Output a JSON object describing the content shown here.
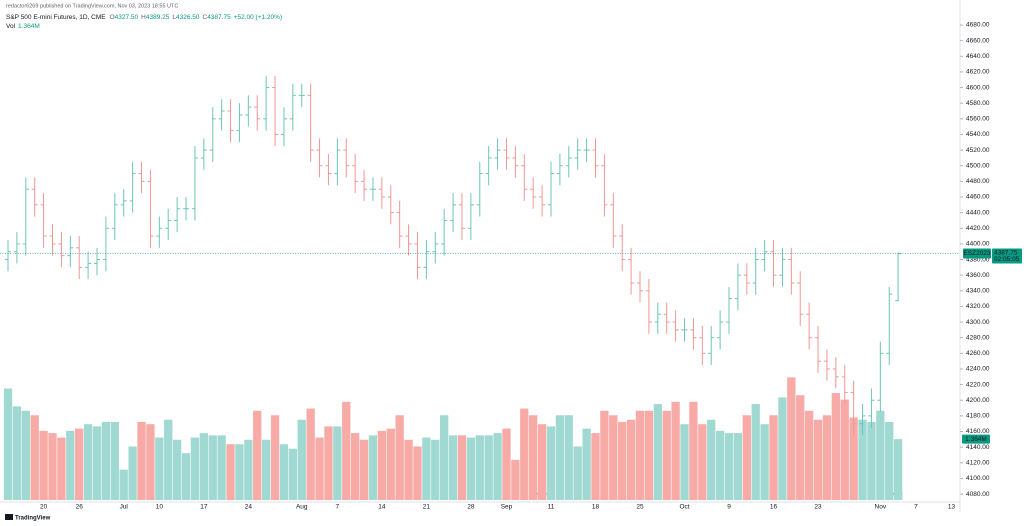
{
  "header": {
    "byline": "redactor6269 published on TradingView.com, Nov 03, 2023 18:55 UTC",
    "symbol": "S&P 500 E-mini Futures, 1D, CME",
    "fields": [
      {
        "label": "O",
        "value": "4327.50"
      },
      {
        "label": "H",
        "value": "4389.25"
      },
      {
        "label": "L",
        "value": "4326.50"
      },
      {
        "label": "C",
        "value": "4387.75"
      }
    ],
    "change": "+52.00 (+1.20%)",
    "vol_label": "Vol",
    "vol_value": "1.364M"
  },
  "chart_data": {
    "type": "ohlc",
    "categories": [
      null,
      null,
      null,
      null,
      "20",
      null,
      null,
      null,
      "26",
      null,
      null,
      null,
      null,
      "Jul",
      null,
      null,
      null,
      "10",
      null,
      null,
      null,
      null,
      "17",
      null,
      null,
      null,
      null,
      "24",
      null,
      null,
      null,
      null,
      null,
      "Aug",
      null,
      null,
      null,
      "7",
      null,
      null,
      null,
      null,
      "14",
      null,
      null,
      null,
      null,
      "21",
      null,
      null,
      null,
      null,
      "28",
      null,
      null,
      null,
      "Sep",
      null,
      null,
      null,
      null,
      "11",
      null,
      null,
      null,
      null,
      "18",
      null,
      null,
      null,
      null,
      "25",
      null,
      null,
      null,
      null,
      "Oct",
      null,
      null,
      null,
      null,
      "9",
      null,
      null,
      null,
      null,
      "16",
      null,
      null,
      null,
      null,
      "23",
      null,
      null,
      null,
      null,
      null,
      null,
      "Nov",
      null,
      null,
      null,
      "7",
      null,
      null,
      null,
      "13"
    ],
    "open": [
      4380,
      4390,
      4400,
      4470,
      4450,
      4410,
      4400,
      4385,
      4395,
      4370,
      4375,
      4380,
      4420,
      4450,
      4455,
      4490,
      4480,
      4410,
      4420,
      4430,
      4445,
      4445,
      4510,
      4520,
      4560,
      4570,
      4545,
      4565,
      4575,
      4560,
      4600,
      4540,
      4560,
      4590,
      4590,
      4520,
      4500,
      4490,
      4520,
      4500,
      4480,
      4470,
      4470,
      4460,
      4440,
      4410,
      4400,
      4370,
      4390,
      4400,
      4430,
      4450,
      4420,
      4450,
      4490,
      4510,
      4520,
      4510,
      4500,
      4470,
      4460,
      4450,
      4490,
      4500,
      4510,
      4520,
      4520,
      4500,
      4450,
      4410,
      4380,
      4350,
      4340,
      4300,
      4310,
      4300,
      4290,
      4290,
      4280,
      4260,
      4280,
      4300,
      4330,
      4360,
      4350,
      4380,
      4390,
      4360,
      4380,
      4350,
      4310,
      4280,
      4250,
      4240,
      4230,
      4210,
      4170,
      4180,
      4200,
      4260,
      4327.5,
      null,
      null,
      null,
      null,
      null,
      null
    ],
    "high": [
      4405,
      4415,
      4485,
      4485,
      4465,
      4425,
      4415,
      4410,
      4410,
      4390,
      4395,
      4435,
      4465,
      4470,
      4505,
      4505,
      4495,
      4435,
      4445,
      4460,
      4460,
      4525,
      4535,
      4575,
      4585,
      4585,
      4580,
      4590,
      4590,
      4615,
      4615,
      4575,
      4605,
      4605,
      4605,
      4535,
      4515,
      4535,
      4535,
      4515,
      4495,
      4485,
      4485,
      4475,
      4455,
      4425,
      4415,
      4405,
      4415,
      4445,
      4465,
      4465,
      4465,
      4505,
      4525,
      4535,
      4535,
      4525,
      4515,
      4485,
      4475,
      4505,
      4515,
      4525,
      4535,
      4535,
      4535,
      4515,
      4465,
      4425,
      4395,
      4365,
      4355,
      4325,
      4325,
      4315,
      4305,
      4305,
      4295,
      4295,
      4315,
      4345,
      4375,
      4375,
      4395,
      4405,
      4405,
      4395,
      4395,
      4365,
      4325,
      4295,
      4265,
      4255,
      4245,
      4225,
      4195,
      4215,
      4275,
      4345,
      4389.25,
      null,
      null,
      null,
      null,
      null,
      null
    ],
    "low": [
      4365,
      4375,
      4385,
      4435,
      4395,
      4385,
      4370,
      4370,
      4355,
      4355,
      4360,
      4365,
      4405,
      4435,
      4440,
      4465,
      4395,
      4395,
      4405,
      4415,
      4430,
      4430,
      4495,
      4505,
      4545,
      4530,
      4530,
      4550,
      4545,
      4545,
      4525,
      4525,
      4545,
      4575,
      4505,
      4485,
      4475,
      4475,
      4485,
      4465,
      4455,
      4455,
      4445,
      4425,
      4395,
      4385,
      4355,
      4355,
      4375,
      4385,
      4415,
      4405,
      4405,
      4435,
      4475,
      4495,
      4495,
      4485,
      4455,
      4445,
      4435,
      4435,
      4475,
      4485,
      4495,
      4505,
      4485,
      4435,
      4395,
      4365,
      4335,
      4325,
      4285,
      4285,
      4285,
      4275,
      4275,
      4265,
      4245,
      4245,
      4265,
      4285,
      4315,
      4335,
      4335,
      4365,
      4345,
      4345,
      4335,
      4295,
      4265,
      4235,
      4225,
      4215,
      4195,
      4155,
      4155,
      4165,
      4185,
      4245,
      4326.5,
      null,
      null,
      null,
      null,
      null,
      null
    ],
    "close": [
      4390,
      4400,
      4470,
      4450,
      4410,
      4400,
      4385,
      4395,
      4370,
      4375,
      4380,
      4420,
      4450,
      4455,
      4490,
      4480,
      4410,
      4420,
      4430,
      4445,
      4445,
      4510,
      4520,
      4560,
      4570,
      4545,
      4565,
      4575,
      4560,
      4600,
      4540,
      4560,
      4590,
      4590,
      4520,
      4500,
      4490,
      4520,
      4500,
      4480,
      4470,
      4470,
      4460,
      4440,
      4410,
      4400,
      4370,
      4390,
      4400,
      4430,
      4450,
      4420,
      4450,
      4490,
      4510,
      4520,
      4510,
      4500,
      4470,
      4460,
      4450,
      4490,
      4500,
      4510,
      4520,
      4520,
      4500,
      4450,
      4410,
      4380,
      4350,
      4340,
      4300,
      4310,
      4300,
      4290,
      4290,
      4280,
      4260,
      4280,
      4300,
      4330,
      4360,
      4350,
      4380,
      4390,
      4360,
      4380,
      4350,
      4310,
      4280,
      4250,
      4240,
      4230,
      4210,
      4170,
      4180,
      4200,
      4260,
      4335.75,
      4387.75,
      null,
      null,
      null,
      null,
      null,
      null
    ],
    "volume": {
      "values": [
        2.5,
        2.1,
        2.0,
        1.9,
        1.55,
        1.5,
        1.4,
        1.55,
        1.6,
        1.7,
        1.65,
        1.75,
        1.75,
        0.68,
        1.2,
        1.75,
        1.7,
        1.4,
        1.8,
        1.35,
        1.05,
        1.4,
        1.5,
        1.45,
        1.45,
        1.25,
        1.25,
        1.35,
        2.0,
        1.35,
        1.9,
        1.25,
        1.15,
        1.8,
        2.05,
        1.4,
        1.65,
        1.65,
        2.2,
        1.5,
        1.35,
        1.45,
        1.55,
        1.6,
        1.9,
        1.35,
        1.2,
        1.4,
        1.35,
        1.9,
        1.45,
        1.45,
        1.4,
        1.45,
        1.45,
        1.5,
        1.6,
        0.9,
        2.05,
        1.9,
        1.7,
        1.65,
        1.9,
        1.9,
        1.2,
        1.6,
        1.5,
        2.0,
        1.9,
        1.75,
        1.8,
        2.0,
        2.0,
        2.15,
        2.0,
        2.2,
        1.7,
        2.2,
        1.7,
        1.8,
        1.55,
        1.5,
        1.5,
        1.9,
        2.15,
        1.7,
        1.9,
        2.3,
        2.75,
        2.35,
        2.0,
        1.8,
        1.9,
        2.4,
        2.25,
        1.85,
        1.8,
        1.75,
        2.0,
        1.75,
        1.364,
        null,
        null,
        null,
        null,
        null,
        null
      ],
      "ylim": [
        0,
        5
      ],
      "up_color": "#a0d9d1",
      "down_color": "#f7aaa6"
    },
    "up_color": "#6cc5b8",
    "down_color": "#f29692",
    "ylim": [
      4066,
      4712
    ],
    "yticks": [
      {
        "value": 4080,
        "label": "4080.00"
      },
      {
        "value": 4100,
        "label": "4100.00"
      },
      {
        "value": 4120,
        "label": "4120.00"
      },
      {
        "value": 4140,
        "label": "4140.00"
      },
      {
        "value": 4160,
        "label": "4160.00"
      },
      {
        "value": 4180,
        "label": "4180.00"
      },
      {
        "value": 4200,
        "label": "4200.00"
      },
      {
        "value": 4220,
        "label": "4220.00"
      },
      {
        "value": 4240,
        "label": "4240.00"
      },
      {
        "value": 4260,
        "label": "4260.00"
      },
      {
        "value": 4280,
        "label": "4280.00"
      },
      {
        "value": 4300,
        "label": "4300.00"
      },
      {
        "value": 4320,
        "label": "4320.00"
      },
      {
        "value": 4340,
        "label": "4340.00"
      },
      {
        "value": 4360,
        "label": "4360.00"
      },
      {
        "value": 4380,
        "label": "4380.00"
      },
      {
        "value": 4400,
        "label": "4400.00"
      },
      {
        "value": 4420,
        "label": "4420.00"
      },
      {
        "value": 4440,
        "label": "4440.00"
      },
      {
        "value": 4460,
        "label": "4460.00"
      },
      {
        "value": 4480,
        "label": "4480.00"
      },
      {
        "value": 4500,
        "label": "4500.00"
      },
      {
        "value": 4520,
        "label": "4520.00"
      },
      {
        "value": 4540,
        "label": "4540.00"
      },
      {
        "value": 4560,
        "label": "4560.00"
      },
      {
        "value": 4580,
        "label": "4580.00"
      },
      {
        "value": 4600,
        "label": "4600.00"
      },
      {
        "value": 4620,
        "label": "4620.00"
      },
      {
        "value": 4640,
        "label": "4640.00"
      },
      {
        "value": 4660,
        "label": "4660.00"
      },
      {
        "value": 4680,
        "label": "4680.00"
      }
    ],
    "grid": false,
    "contract": "ESZ2023",
    "countdown": "02:05:05",
    "price_line_color": "#089981"
  },
  "footer": {
    "logo": "TradingView"
  }
}
